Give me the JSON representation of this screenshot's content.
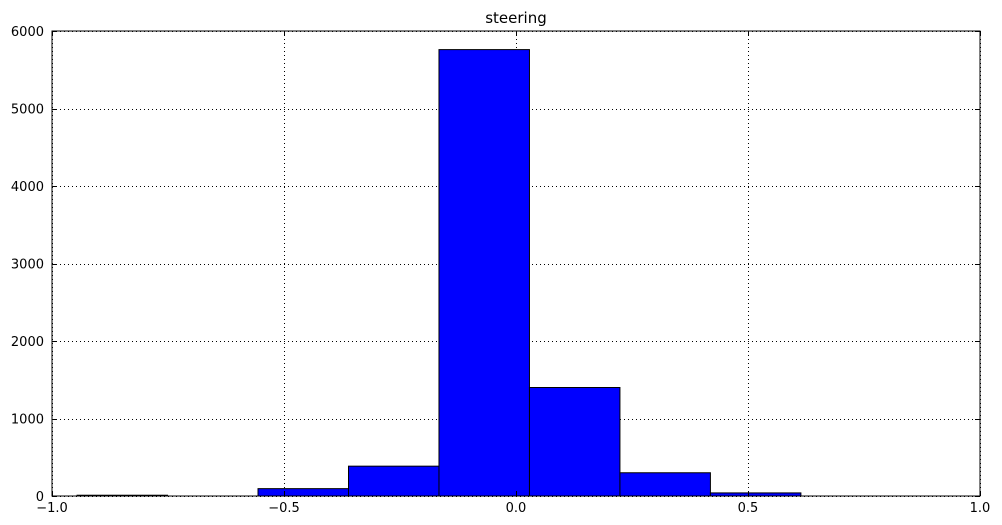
{
  "chart_data": {
    "type": "bar",
    "subtype": "histogram",
    "title": "steering",
    "xlabel": "",
    "ylabel": "",
    "xlim": [
      -1.0,
      1.0
    ],
    "ylim": [
      0,
      6000
    ],
    "xticks": [
      -1.0,
      -0.5,
      0.0,
      0.5,
      1.0
    ],
    "xtick_labels": [
      "−1.0",
      "−0.5",
      "0.0",
      "0.5",
      "1.0"
    ],
    "yticks": [
      0,
      1000,
      2000,
      3000,
      4000,
      5000,
      6000
    ],
    "ytick_labels": [
      "0",
      "1000",
      "2000",
      "3000",
      "4000",
      "5000",
      "6000"
    ],
    "grid": true,
    "bar_color": "#0000ff",
    "edge_color": "#000000",
    "bins": [
      {
        "x0": -0.946,
        "x1": -0.751,
        "count": 10
      },
      {
        "x0": -0.751,
        "x1": -0.556,
        "count": 0
      },
      {
        "x0": -0.556,
        "x1": -0.361,
        "count": 95
      },
      {
        "x0": -0.361,
        "x1": -0.166,
        "count": 385
      },
      {
        "x0": -0.166,
        "x1": 0.029,
        "count": 5760
      },
      {
        "x0": 0.029,
        "x1": 0.224,
        "count": 1400
      },
      {
        "x0": 0.224,
        "x1": 0.419,
        "count": 300
      },
      {
        "x0": 0.419,
        "x1": 0.614,
        "count": 40
      }
    ]
  }
}
